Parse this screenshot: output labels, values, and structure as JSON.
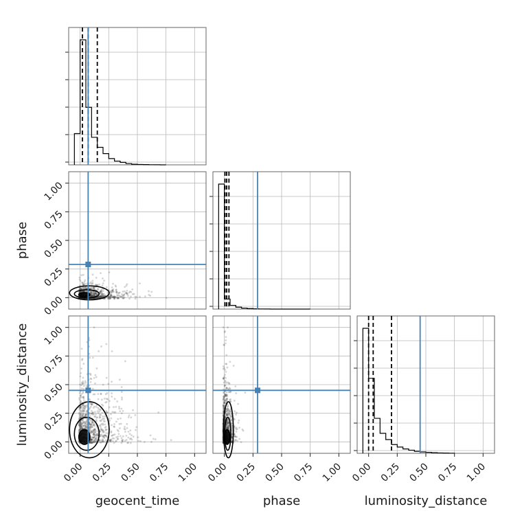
{
  "chart_data": {
    "type": "corner",
    "parameters": [
      "geocent_time",
      "phase",
      "luminosity_distance"
    ],
    "axis_range": [
      -0.1,
      1.1
    ],
    "ticks": [
      0.0,
      0.25,
      0.5,
      0.75,
      1.0
    ],
    "tick_labels": [
      "0.00",
      "0.25",
      "0.50",
      "0.75",
      "1.00"
    ],
    "grid": true,
    "truths": {
      "geocent_time": 0.07,
      "phase": 0.29,
      "luminosity_distance": 0.45
    },
    "truth_color": "#4682b4",
    "hist_color": "#000000",
    "histograms": {
      "bin_edges": [
        -0.05,
        0.0,
        0.05,
        0.1,
        0.15,
        0.2,
        0.25,
        0.3,
        0.35,
        0.4,
        0.45,
        0.5,
        0.55,
        0.6,
        0.65,
        0.7,
        0.75
      ],
      "geocent_time": {
        "counts": [
          0.25,
          1.0,
          0.46,
          0.22,
          0.14,
          0.09,
          0.05,
          0.03,
          0.02,
          0.01,
          0.005,
          0.003,
          0.002,
          0.001,
          0.0005,
          0.0,
          0.0
        ],
        "quantiles": [
          0.02,
          0.07,
          0.15
        ]
      },
      "phase": {
        "counts": [
          1.0,
          0.08,
          0.03,
          0.015,
          0.008,
          0.004,
          0.002,
          0.001,
          0.0005,
          0.0,
          0.0,
          0.0,
          0.0,
          0.0,
          0.0,
          0.0,
          0.0
        ],
        "quantiles": [
          0.005,
          0.02,
          0.04
        ]
      },
      "luminosity_distance": {
        "counts": [
          1.0,
          0.6,
          0.28,
          0.16,
          0.11,
          0.07,
          0.05,
          0.035,
          0.025,
          0.016,
          0.011,
          0.008,
          0.005,
          0.003,
          0.002,
          0.001,
          0.0
        ],
        "quantiles": [
          0.0,
          0.04,
          0.2
        ]
      }
    },
    "scatter_panels": [
      {
        "x": "geocent_time",
        "y": "phase",
        "x_spread": 0.12,
        "y_spread": 0.04,
        "x_max": 0.9,
        "y_max": 0.85
      },
      {
        "x": "geocent_time",
        "y": "luminosity_distance",
        "x_spread": 0.12,
        "y_spread": 0.16,
        "x_max": 0.9,
        "y_max": 1.0
      },
      {
        "x": "phase",
        "y": "luminosity_distance",
        "x_spread": 0.03,
        "y_spread": 0.16,
        "x_max": 0.9,
        "y_max": 1.0
      }
    ]
  }
}
